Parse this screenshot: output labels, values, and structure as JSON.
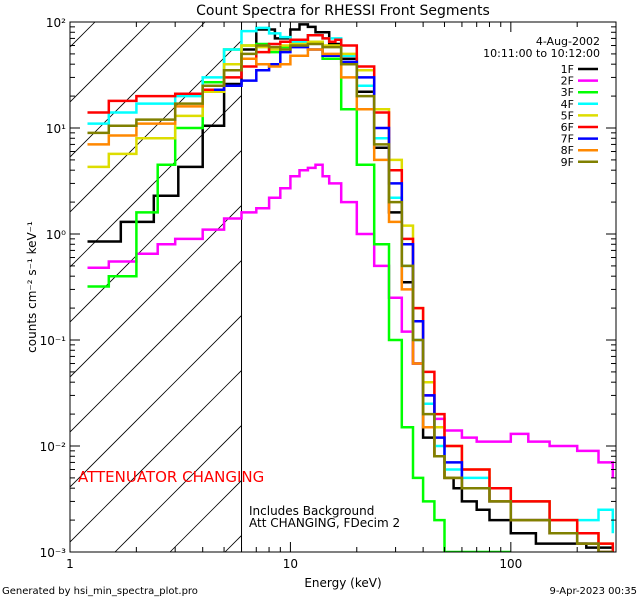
{
  "chart_data": {
    "type": "line",
    "title": "Count Spectra for RHESSI Front Segments",
    "xlabel": "Energy (keV)",
    "ylabel": "counts cm⁻² s⁻¹ keV⁻¹",
    "xscale": "log",
    "yscale": "log",
    "xlim": [
      1,
      300
    ],
    "ylim": [
      0.001,
      100
    ],
    "x_tick_labels": [
      {
        "value": 1,
        "label": "1"
      },
      {
        "value": 10,
        "label": "10"
      },
      {
        "value": 100,
        "label": "100"
      }
    ],
    "y_tick_labels": [
      {
        "value": 100,
        "label": "10²"
      },
      {
        "value": 10,
        "label": "10¹"
      },
      {
        "value": 1,
        "label": "10⁰"
      },
      {
        "value": 0.1,
        "label": "10⁻¹"
      },
      {
        "value": 0.01,
        "label": "10⁻²"
      },
      {
        "value": 0.001,
        "label": "10⁻³"
      }
    ],
    "date": "4-Aug-2002",
    "time_range": "10:11:00 to 10:12:00",
    "threshold_energy": 6.0,
    "annotations": {
      "attenuator": "ATTENUATOR CHANGING",
      "background": "Includes Background",
      "att_status": "Att CHANGING, FDecim 2"
    },
    "series": [
      {
        "name": "1F",
        "color": "#000000",
        "x": [
          1.2,
          1.7,
          2.4,
          3.1,
          4.0,
          5.0,
          6.0,
          7.0,
          8.5,
          10,
          11,
          12,
          13,
          15,
          17,
          20,
          24,
          28,
          32,
          36,
          40,
          45,
          50,
          55,
          60,
          70,
          80,
          100,
          130,
          170,
          220,
          290
        ],
        "y": [
          0.85,
          1.3,
          2.3,
          4.3,
          10.5,
          26,
          55,
          85,
          70,
          85,
          95,
          90,
          80,
          62,
          45,
          22,
          6.5,
          1.6,
          0.35,
          0.06,
          0.012,
          0.008,
          0.005,
          0.004,
          0.003,
          0.0025,
          0.002,
          0.0015,
          0.0012,
          0.0012,
          0.0011,
          0.001
        ]
      },
      {
        "name": "2F",
        "color": "#ff00ff",
        "x": [
          1.2,
          1.5,
          2,
          2.5,
          3,
          4,
          5,
          6,
          7,
          8,
          9,
          10,
          11,
          12,
          13,
          14,
          15,
          17,
          20,
          24,
          28,
          32,
          36,
          40,
          45,
          50,
          60,
          70,
          80,
          100,
          120,
          150,
          200,
          250,
          290
        ],
        "y": [
          0.48,
          0.55,
          0.65,
          0.8,
          0.9,
          1.1,
          1.4,
          1.6,
          1.75,
          2.2,
          2.7,
          3.5,
          4.0,
          4.2,
          4.5,
          3.5,
          3.0,
          2.0,
          1.0,
          0.5,
          0.25,
          0.12,
          0.06,
          0.03,
          0.018,
          0.014,
          0.012,
          0.011,
          0.011,
          0.013,
          0.011,
          0.01,
          0.009,
          0.007,
          0.005
        ]
      },
      {
        "name": "3F",
        "color": "#00ff00",
        "x": [
          1.2,
          1.5,
          2,
          2.5,
          3,
          4,
          5,
          6,
          7,
          8,
          9,
          10,
          12,
          14,
          17,
          20,
          24,
          28,
          32,
          36,
          40,
          45,
          50,
          60,
          80,
          100
        ],
        "y": [
          0.32,
          0.4,
          1.6,
          4.5,
          10,
          27,
          55,
          60,
          62,
          52,
          58,
          65,
          65,
          45,
          15,
          4.5,
          0.8,
          0.1,
          0.015,
          0.005,
          0.003,
          0.002,
          0.001,
          0.001,
          0.001,
          0.001
        ]
      },
      {
        "name": "4F",
        "color": "#00ffff",
        "x": [
          1.2,
          1.5,
          2,
          3,
          4,
          5,
          6,
          7,
          8,
          9,
          10,
          12,
          14,
          17,
          20,
          24,
          28,
          32,
          36,
          40,
          45,
          50,
          60,
          80,
          100,
          150,
          200,
          250,
          290
        ],
        "y": [
          11,
          14,
          17,
          20,
          30,
          55,
          82,
          88,
          78,
          72,
          65,
          75,
          70,
          48,
          25,
          8,
          2.2,
          0.5,
          0.1,
          0.025,
          0.01,
          0.006,
          0.005,
          0.004,
          0.003,
          0.002,
          0.002,
          0.0025,
          0.0015
        ]
      },
      {
        "name": "5F",
        "color": "#dddd00",
        "x": [
          1.2,
          1.5,
          2,
          3,
          4,
          5,
          6,
          7,
          8,
          9,
          10,
          12,
          14,
          17,
          20,
          24,
          28,
          32,
          36,
          40,
          45,
          50,
          60,
          80,
          100,
          150,
          200,
          250,
          290
        ],
        "y": [
          4.3,
          5.7,
          8,
          13,
          22,
          40,
          60,
          58,
          55,
          60,
          62,
          65,
          60,
          50,
          35,
          15,
          5,
          1.2,
          0.2,
          0.04,
          0.015,
          0.01,
          0.006,
          0.004,
          0.003,
          0.002,
          0.0015,
          0.0012,
          0.001
        ]
      },
      {
        "name": "6F",
        "color": "#ff0000",
        "x": [
          1.2,
          1.5,
          2,
          3,
          4,
          5,
          6,
          7,
          8,
          9,
          10,
          12,
          14,
          15,
          16,
          17,
          20,
          24,
          28,
          32,
          36,
          40,
          45,
          50,
          60,
          80,
          100,
          150,
          200,
          250,
          290
        ],
        "y": [
          14,
          18,
          20,
          21,
          23,
          30,
          38,
          52,
          62,
          65,
          68,
          75,
          70,
          65,
          68,
          60,
          38,
          14,
          4,
          0.9,
          0.2,
          0.05,
          0.02,
          0.01,
          0.006,
          0.004,
          0.003,
          0.002,
          0.0015,
          0.0012,
          0.001
        ]
      },
      {
        "name": "7F",
        "color": "#0000ff",
        "x": [
          4.5,
          5,
          6,
          7,
          8,
          9,
          10,
          12,
          14,
          17,
          20,
          24,
          28,
          32,
          36,
          40,
          45,
          50,
          60,
          80,
          100,
          150,
          200,
          250,
          290
        ],
        "y": [
          23,
          25,
          28,
          35,
          40,
          52,
          58,
          55,
          48,
          42,
          30,
          10,
          3,
          0.8,
          0.15,
          0.03,
          0.012,
          0.007,
          0.004,
          0.003,
          0.002,
          0.0015,
          0.0012,
          0.001,
          0.001
        ]
      },
      {
        "name": "8F",
        "color": "#ff8800",
        "x": [
          1.2,
          1.5,
          2,
          3,
          4,
          5,
          6,
          7,
          8,
          9,
          10,
          12,
          14,
          17,
          20,
          24,
          28,
          32,
          36,
          40,
          45,
          50,
          60,
          80,
          100,
          150,
          200,
          250,
          290
        ],
        "y": [
          7,
          8.5,
          11,
          16,
          25,
          35,
          45,
          40,
          38,
          40,
          48,
          55,
          50,
          30,
          15,
          5,
          1.3,
          0.3,
          0.06,
          0.015,
          0.008,
          0.005,
          0.004,
          0.003,
          0.002,
          0.0015,
          0.0012,
          0.001,
          0.001
        ]
      },
      {
        "name": "9F",
        "color": "#808000",
        "x": [
          1.2,
          1.5,
          2,
          3,
          4,
          5,
          6,
          7,
          8,
          9,
          10,
          12,
          14,
          17,
          20,
          24,
          28,
          32,
          36,
          40,
          45,
          50,
          60,
          80,
          100,
          150,
          200,
          250,
          290
        ],
        "y": [
          9,
          10.5,
          12,
          17,
          25,
          35,
          50,
          60,
          58,
          55,
          60,
          62,
          58,
          40,
          20,
          7,
          2,
          0.5,
          0.1,
          0.02,
          0.008,
          0.005,
          0.004,
          0.003,
          0.002,
          0.0015,
          0.0012,
          0.001,
          0.001
        ]
      }
    ]
  },
  "footer": {
    "left": "Generated by hsi_min_spectra_plot.pro",
    "right": "9-Apr-2023 00:35"
  }
}
